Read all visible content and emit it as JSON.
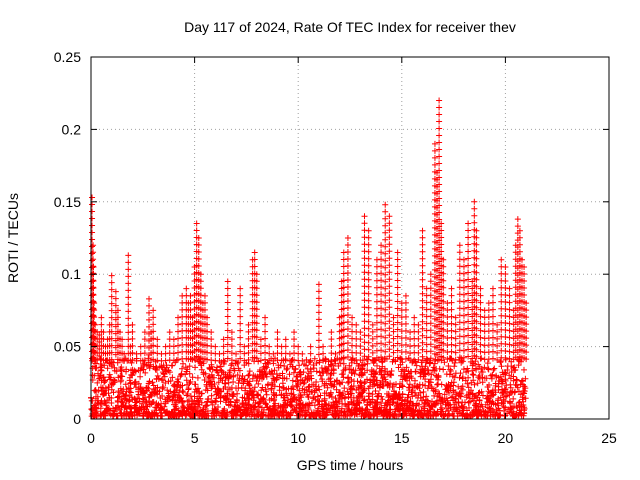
{
  "chart_data": {
    "type": "scatter",
    "title": "Day 117 of 2024, Rate Of TEC Index for receiver thev",
    "xlabel": "GPS time / hours",
    "ylabel": "ROTI / TECUs",
    "xlim": [
      0,
      25
    ],
    "ylim": [
      0,
      0.25
    ],
    "xticks": [
      0,
      5,
      10,
      15,
      20,
      25
    ],
    "xtick_labels": [
      "0",
      "5",
      "10",
      "15",
      "20",
      "25"
    ],
    "yticks": [
      0,
      0.05,
      0.1,
      0.15,
      0.2,
      0.25
    ],
    "ytick_labels": [
      "0",
      "0.05",
      "0.1",
      "0.15",
      "0.2",
      "0.25"
    ],
    "grid": true,
    "marker": "+",
    "color": "#ff0000",
    "series": [
      {
        "name": "ROTI",
        "x": [
          0.05,
          0.1,
          0.12,
          0.15,
          0.2,
          0.3,
          0.4,
          0.5,
          0.6,
          0.7,
          0.8,
          0.9,
          1.0,
          1.2,
          1.3,
          1.4,
          1.5,
          1.6,
          1.8,
          1.9,
          2.0,
          2.2,
          2.4,
          2.6,
          2.8,
          2.9,
          3.0,
          3.2,
          3.4,
          3.6,
          3.8,
          4.0,
          4.2,
          4.4,
          4.6,
          4.7,
          4.8,
          4.9,
          5.0,
          5.1,
          5.2,
          5.3,
          5.4,
          5.5,
          5.6,
          5.8,
          6.0,
          6.2,
          6.4,
          6.6,
          6.8,
          7.0,
          7.2,
          7.4,
          7.6,
          7.8,
          7.9,
          8.0,
          8.2,
          8.4,
          8.6,
          8.8,
          9.0,
          9.2,
          9.4,
          9.6,
          9.8,
          10.0,
          10.2,
          10.4,
          10.6,
          10.8,
          11.0,
          11.2,
          11.4,
          11.6,
          11.8,
          12.0,
          12.1,
          12.2,
          12.4,
          12.6,
          12.8,
          13.0,
          13.2,
          13.4,
          13.6,
          13.8,
          14.0,
          14.2,
          14.4,
          14.6,
          14.8,
          15.0,
          15.2,
          15.4,
          15.6,
          15.8,
          16.0,
          16.2,
          16.4,
          16.6,
          16.7,
          16.8,
          16.9,
          17.0,
          17.2,
          17.4,
          17.6,
          17.8,
          18.0,
          18.2,
          18.4,
          18.5,
          18.6,
          18.8,
          19.0,
          19.2,
          19.4,
          19.6,
          19.8,
          20.0,
          20.2,
          20.4,
          20.5,
          20.6,
          20.7,
          20.8,
          20.9,
          21.0
        ],
        "y": [
          0.153,
          0.12,
          0.105,
          0.08,
          0.065,
          0.06,
          0.058,
          0.07,
          0.06,
          0.05,
          0.055,
          0.065,
          0.099,
          0.088,
          0.075,
          0.06,
          0.055,
          0.045,
          0.113,
          0.05,
          0.065,
          0.045,
          0.05,
          0.06,
          0.083,
          0.06,
          0.075,
          0.055,
          0.045,
          0.05,
          0.06,
          0.055,
          0.07,
          0.085,
          0.09,
          0.08,
          0.085,
          0.07,
          0.105,
          0.135,
          0.125,
          0.1,
          0.08,
          0.085,
          0.07,
          0.06,
          0.05,
          0.045,
          0.055,
          0.095,
          0.06,
          0.045,
          0.09,
          0.05,
          0.065,
          0.11,
          0.115,
          0.1,
          0.055,
          0.07,
          0.05,
          0.045,
          0.06,
          0.05,
          0.055,
          0.045,
          0.06,
          0.05,
          0.045,
          0.04,
          0.05,
          0.04,
          0.093,
          0.05,
          0.04,
          0.06,
          0.045,
          0.07,
          0.095,
          0.115,
          0.125,
          0.07,
          0.065,
          0.06,
          0.14,
          0.13,
          0.065,
          0.11,
          0.12,
          0.148,
          0.14,
          0.07,
          0.115,
          0.08,
          0.085,
          0.06,
          0.07,
          0.065,
          0.13,
          0.09,
          0.1,
          0.19,
          0.17,
          0.22,
          0.135,
          0.11,
          0.08,
          0.09,
          0.07,
          0.12,
          0.11,
          0.135,
          0.095,
          0.15,
          0.13,
          0.09,
          0.075,
          0.08,
          0.09,
          0.065,
          0.11,
          0.105,
          0.09,
          0.075,
          0.12,
          0.138,
          0.13,
          0.11,
          0.105,
          0.08
        ]
      }
    ],
    "background_cluster": {
      "x_range": [
        0,
        21
      ],
      "y_range": [
        0,
        0.04
      ],
      "description_note": "dense band of points"
    }
  }
}
